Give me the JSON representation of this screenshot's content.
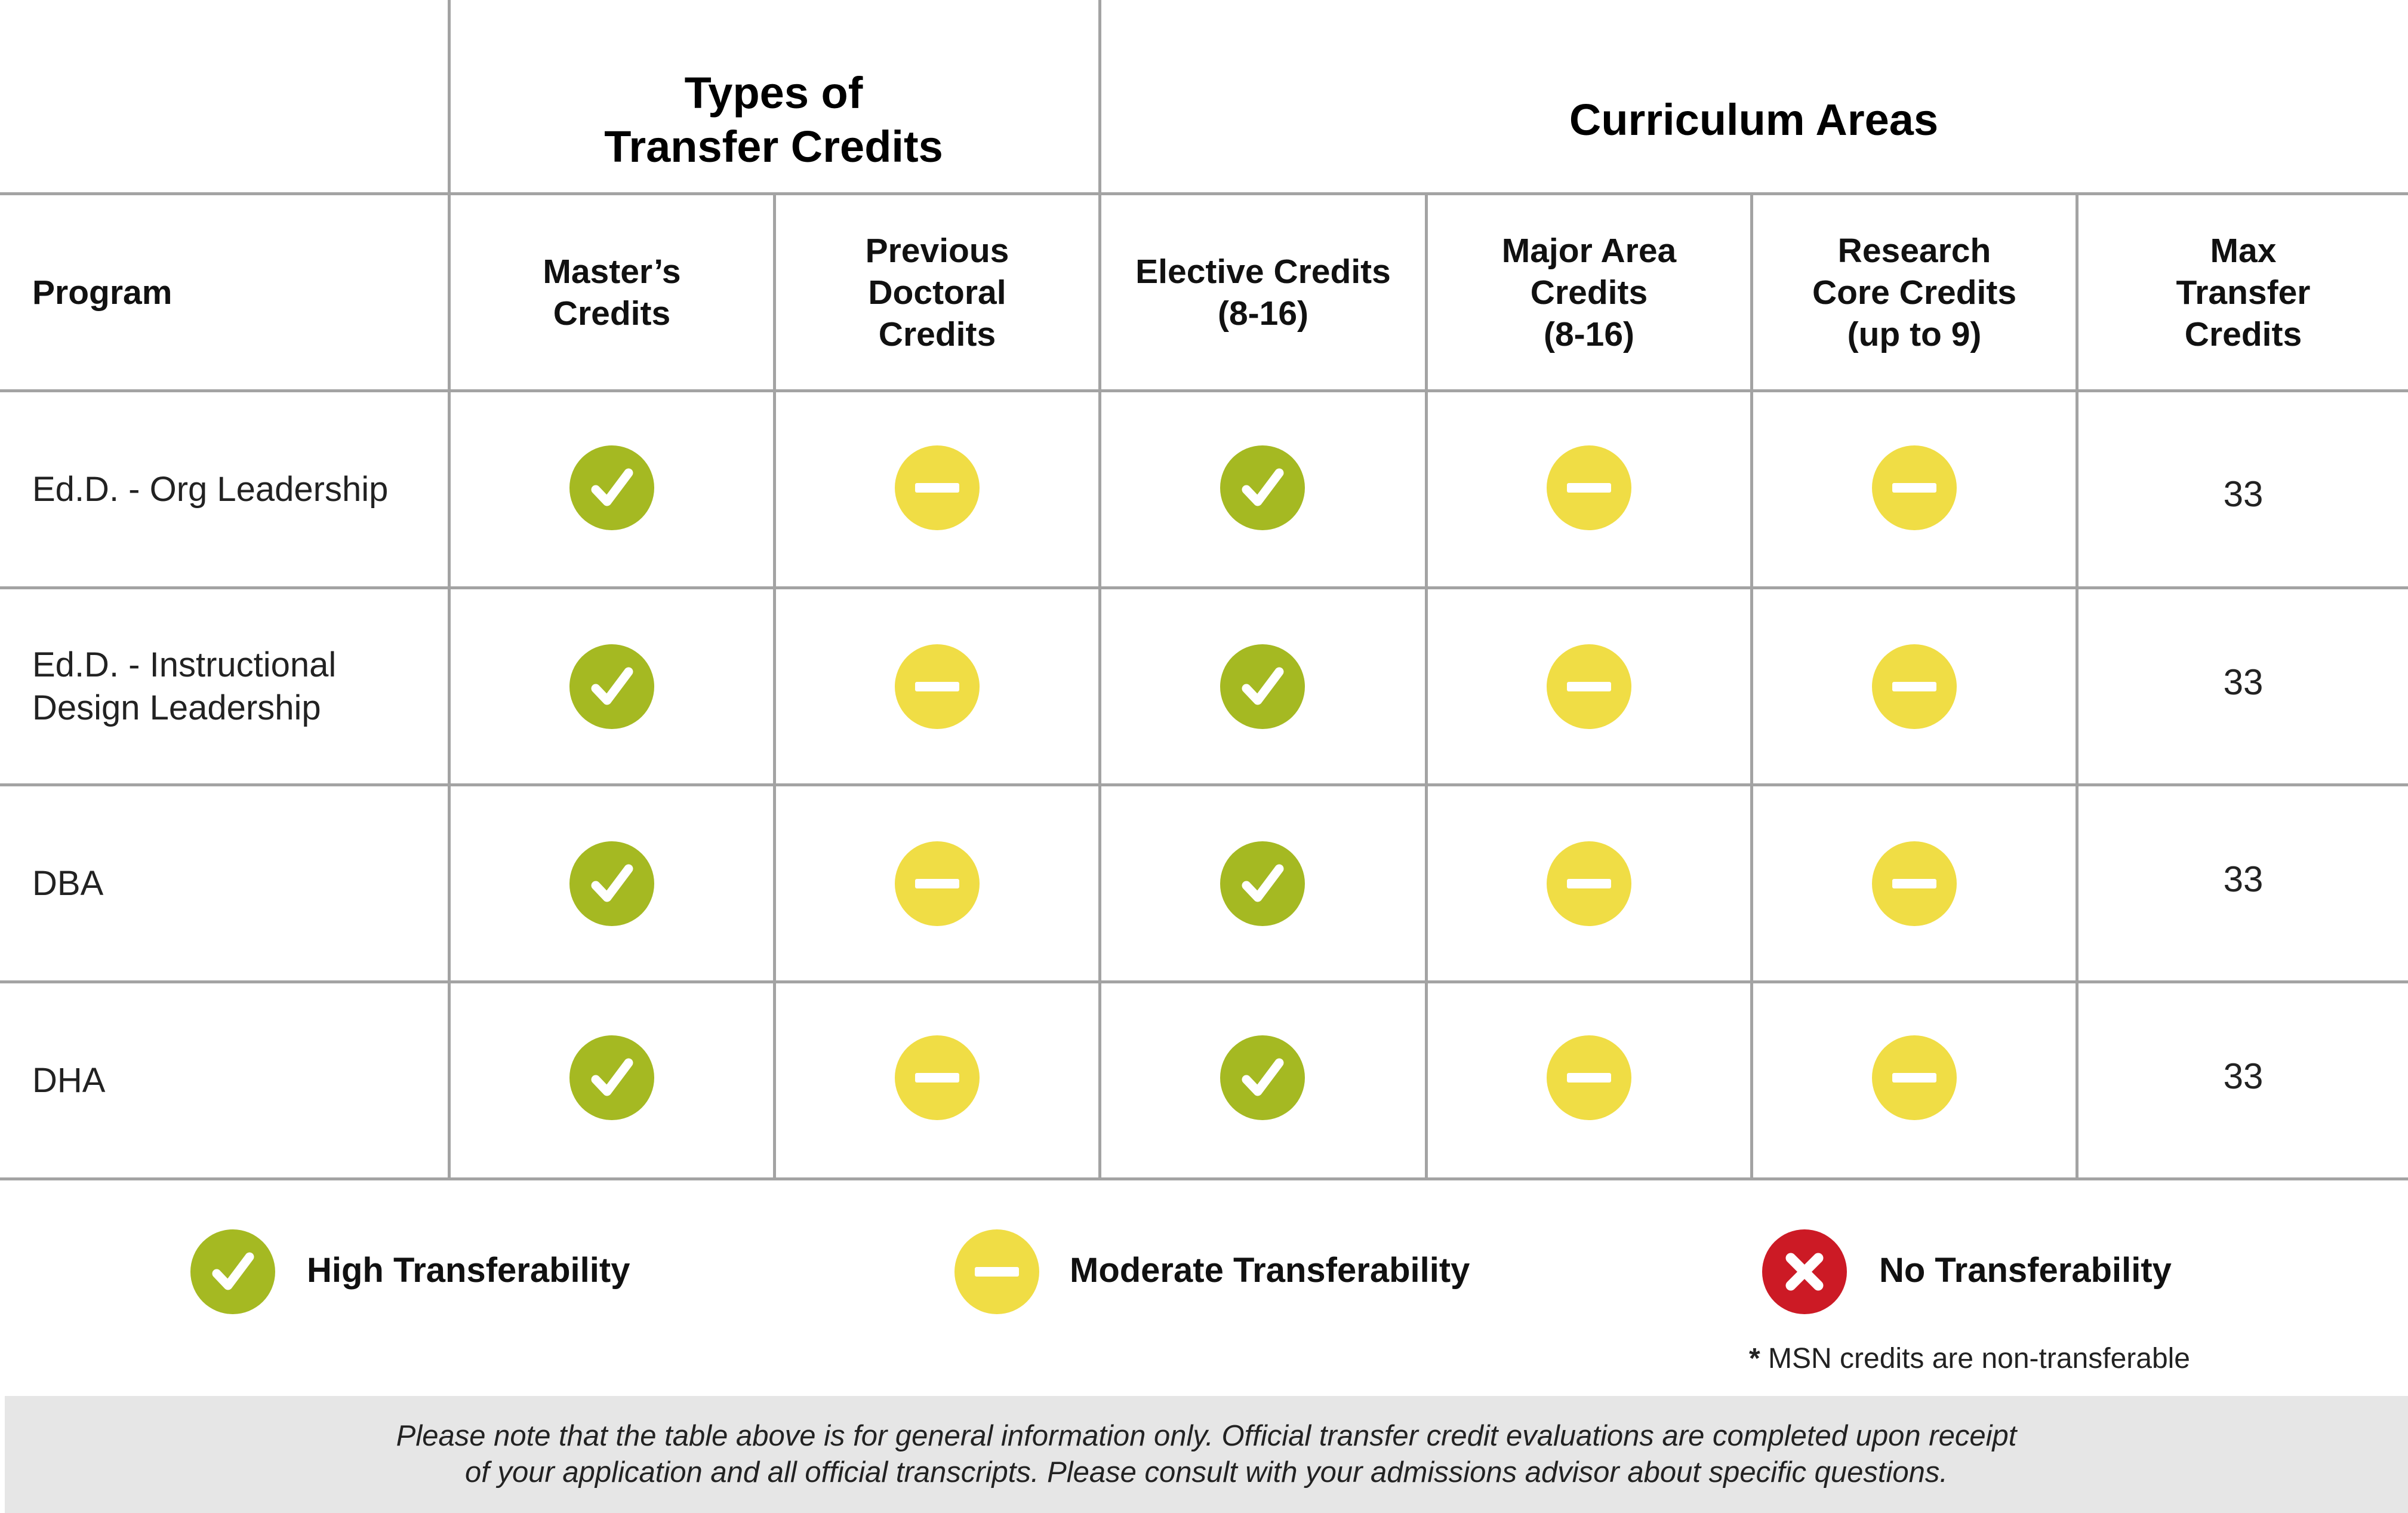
{
  "groups": {
    "types": "Types of\nTransfer Credits",
    "curriculum": "Curriculum Areas"
  },
  "columns": [
    "Program",
    "Master’s\nCredits",
    "Previous\nDoctoral\nCredits",
    "Elective Credits\n(8-16)",
    "Major Area\nCredits\n(8-16)",
    "Research\nCore Credits\n(up to 9)",
    "Max\nTransfer\nCredits"
  ],
  "rows": [
    {
      "program": "Ed.D. - Org Leadership",
      "marks": [
        "high",
        "moderate",
        "high",
        "moderate",
        "moderate"
      ],
      "max": "33"
    },
    {
      "program": "Ed.D. - Instructional\nDesign Leadership",
      "marks": [
        "high",
        "moderate",
        "high",
        "moderate",
        "moderate"
      ],
      "max": "33"
    },
    {
      "program": "DBA",
      "marks": [
        "high",
        "moderate",
        "high",
        "moderate",
        "moderate"
      ],
      "max": "33"
    },
    {
      "program": "DHA",
      "marks": [
        "high",
        "moderate",
        "high",
        "moderate",
        "moderate"
      ],
      "max": "33"
    }
  ],
  "legend": {
    "high": "High Transferability",
    "moderate": "Moderate Transferability",
    "none": "No Transferability"
  },
  "footnote": {
    "mark": "*",
    "text": " MSN credits are non-transferable"
  },
  "disclaimer": "Please note that the table above is for general information only. Official transfer credit evaluations are completed upon receipt\nof your application and all official transcripts. Please consult with your admissions advisor about specific questions.",
  "colors": {
    "high": "#a5b922",
    "moderate": "#f0dd45",
    "none": "#cc1a25",
    "grid": "#a3a3a3",
    "band": "#e6e6e6"
  },
  "icons": {
    "high": "check-icon",
    "moderate": "minus-icon",
    "none": "x-icon"
  }
}
